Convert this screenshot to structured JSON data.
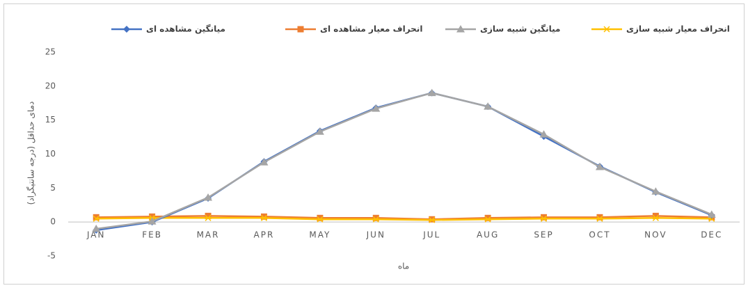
{
  "chart_data": {
    "type": "line",
    "y_label": "دمای حداقل (درجه سانتیگراد)",
    "x_label": "ماه",
    "categories": [
      "JAN",
      "FEB",
      "MAR",
      "APR",
      "MAY",
      "JUN",
      "JUL",
      "AUG",
      "SEP",
      "OCT",
      "NOV",
      "DEC"
    ],
    "series": [
      {
        "name": "میانگین مشاهده ای",
        "color": "#4472c4",
        "marker": "diamond",
        "values": [
          -1.2,
          0,
          3.5,
          8.9,
          13.4,
          16.8,
          19.0,
          17.0,
          12.6,
          8.2,
          4.4,
          1.0
        ]
      },
      {
        "name": "انحراف معیار مشاهده ای",
        "color": "#ed7d31",
        "marker": "square",
        "values": [
          0.7,
          0.8,
          0.9,
          0.8,
          0.6,
          0.6,
          0.4,
          0.6,
          0.7,
          0.7,
          0.9,
          0.7
        ]
      },
      {
        "name": "میانگین شبیه سازی",
        "color": "#a5a5a5",
        "marker": "triangle",
        "values": [
          -1.0,
          0.1,
          3.6,
          8.8,
          13.3,
          16.7,
          19.0,
          17.0,
          12.9,
          8.1,
          4.5,
          1.1
        ]
      },
      {
        "name": "انحراف معیار شبیه سازی",
        "color": "#ffc000",
        "marker": "x",
        "values": [
          0.5,
          0.6,
          0.6,
          0.6,
          0.4,
          0.4,
          0.3,
          0.4,
          0.5,
          0.5,
          0.6,
          0.5
        ]
      }
    ],
    "ylim": [
      -5,
      25
    ],
    "yticks": [
      -5,
      0,
      5,
      10,
      15,
      20,
      25
    ],
    "grid": false,
    "legend": "top"
  }
}
